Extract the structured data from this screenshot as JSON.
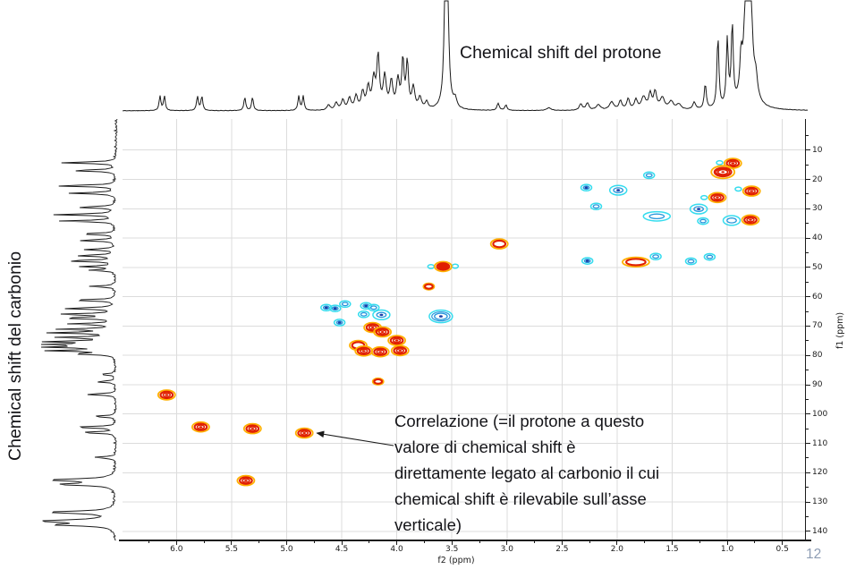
{
  "page": {
    "number": "12"
  },
  "labels": {
    "proton_title": "Chemical shift del protone",
    "carbon_title": "Chemical shift del carbonio",
    "f2_axis": "f2 (ppm)",
    "f1_axis": "f1 (ppm)",
    "annotation_full": "Correlazione (=il protone a questo valore di chemical shift è direttamente legato al carbonio il cui chemical shift è rilevabile sull’asse verticale)",
    "annotation_lines": [
      "Correlazione (=il protone a questo",
      "valore di chemical shift è",
      "direttamente legato al carbonio il cui",
      "chemical shift è rilevabile sull’asse",
      "verticale)"
    ]
  },
  "colors": {
    "trace": "#1a1a1a",
    "grid": "#dcdcdc",
    "pos_outer": "#ffb000",
    "pos_main": "#e01f00",
    "neg_outer": "#35dcee",
    "neg_mid": "#2596dc",
    "neg_center": "#1d3fa8",
    "page_number": "#8E9DB4"
  },
  "chart_data": [
    {
      "name": "hsqc_2d_contour",
      "type": "heatmap",
      "title": "2D H-C correlation contour map (HSQC-style)",
      "x_axis": {
        "label": "f2 (ppm)",
        "range": [
          6.49,
          0.27
        ],
        "tick_labels": [
          "6.0",
          "5.5",
          "5.0",
          "4.5",
          "4.0",
          "3.5",
          "3.0",
          "2.5",
          "2.0",
          "1.5",
          "1.0",
          "0.5"
        ],
        "grid": true
      },
      "y_axis": {
        "label": "f1 (ppm)",
        "range": [
          -0.6,
          143.1
        ],
        "tick_labels": [
          "10",
          "20",
          "30",
          "40",
          "50",
          "60",
          "70",
          "80",
          "90",
          "100",
          "110",
          "120",
          "130",
          "140"
        ],
        "grid": true
      },
      "peaks": [
        [
          0.95,
          14.5,
          "red",
          "med",
          ""
        ],
        [
          1.04,
          17.5,
          "red",
          "large",
          ""
        ],
        [
          0.78,
          24.0,
          "red",
          "med",
          ""
        ],
        [
          1.09,
          26.2,
          "red",
          "med",
          ""
        ],
        [
          0.79,
          33.8,
          "red",
          "med",
          ""
        ],
        [
          3.07,
          42.0,
          "red",
          "med",
          "hollow"
        ],
        [
          1.83,
          48.2,
          "red",
          "wide",
          "hollow"
        ],
        [
          3.58,
          49.7,
          "red",
          "med",
          "filled"
        ],
        [
          3.71,
          56.5,
          "red",
          "small",
          ""
        ],
        [
          4.22,
          70.5,
          "red",
          "med",
          ""
        ],
        [
          4.13,
          72.0,
          "red",
          "med",
          ""
        ],
        [
          4.0,
          74.9,
          "red",
          "med",
          ""
        ],
        [
          4.35,
          76.6,
          "red",
          "med",
          "hollow"
        ],
        [
          4.3,
          78.5,
          "red",
          "med",
          ""
        ],
        [
          4.15,
          78.8,
          "red",
          "med",
          ""
        ],
        [
          3.97,
          78.4,
          "red",
          "med",
          ""
        ],
        [
          4.17,
          88.9,
          "red",
          "small",
          ""
        ],
        [
          6.09,
          93.5,
          "red",
          "med",
          ""
        ],
        [
          5.78,
          104.4,
          "red",
          "med",
          ""
        ],
        [
          5.31,
          105.0,
          "red",
          "med",
          ""
        ],
        [
          4.84,
          106.5,
          "red",
          "med",
          ""
        ],
        [
          5.37,
          122.7,
          "red",
          "med",
          ""
        ],
        [
          1.07,
          14.3,
          "cyan",
          "tiny",
          ""
        ],
        [
          1.71,
          18.6,
          "cyan",
          "small",
          ""
        ],
        [
          2.28,
          22.8,
          "cyan",
          "small",
          "center"
        ],
        [
          1.99,
          23.7,
          "cyan",
          "med",
          "center"
        ],
        [
          0.9,
          23.3,
          "cyan",
          "tiny",
          ""
        ],
        [
          1.21,
          26.2,
          "cyan",
          "tiny",
          ""
        ],
        [
          2.19,
          29.2,
          "cyan",
          "small",
          ""
        ],
        [
          1.26,
          30.1,
          "cyan",
          "med",
          "center"
        ],
        [
          1.64,
          32.6,
          "cyan",
          "wide",
          ""
        ],
        [
          1.22,
          34.2,
          "cyan",
          "small",
          ""
        ],
        [
          0.96,
          34.0,
          "cyan",
          "med",
          ""
        ],
        [
          2.27,
          47.8,
          "cyan",
          "small",
          "center"
        ],
        [
          1.65,
          46.3,
          "cyan",
          "small",
          ""
        ],
        [
          1.33,
          47.9,
          "cyan",
          "small",
          ""
        ],
        [
          1.16,
          46.4,
          "cyan",
          "small",
          ""
        ],
        [
          3.69,
          49.7,
          "cyan",
          "tiny",
          ""
        ],
        [
          3.47,
          49.6,
          "cyan",
          "tiny",
          ""
        ],
        [
          4.64,
          63.7,
          "cyan",
          "small",
          "center"
        ],
        [
          4.56,
          64.0,
          "cyan",
          "small",
          "center"
        ],
        [
          4.47,
          62.5,
          "cyan",
          "small",
          ""
        ],
        [
          4.28,
          63.1,
          "cyan",
          "small",
          "center"
        ],
        [
          4.21,
          63.7,
          "cyan",
          "small",
          ""
        ],
        [
          4.3,
          66.0,
          "cyan",
          "small",
          ""
        ],
        [
          4.14,
          66.2,
          "cyan",
          "med",
          "center"
        ],
        [
          4.52,
          68.8,
          "cyan",
          "small",
          "center"
        ],
        [
          3.6,
          66.7,
          "cyan",
          "large",
          "center"
        ]
      ]
    },
    {
      "name": "proton_1d_trace",
      "type": "line",
      "orientation": "horizontal",
      "peaks_ppm_height_width": [
        [
          6.15,
          16,
          1.2
        ],
        [
          6.11,
          16,
          1.2
        ],
        [
          5.81,
          16,
          1.2
        ],
        [
          5.77,
          16,
          1.2
        ],
        [
          5.38,
          15,
          1.2
        ],
        [
          5.31,
          15,
          1.2
        ],
        [
          4.89,
          16,
          1.2
        ],
        [
          4.85,
          16,
          1.2
        ],
        [
          4.62,
          6,
          2
        ],
        [
          4.55,
          8,
          2
        ],
        [
          4.49,
          11,
          2
        ],
        [
          4.43,
          13,
          2
        ],
        [
          4.37,
          15,
          2
        ],
        [
          4.31,
          19,
          2
        ],
        [
          4.26,
          24,
          2
        ],
        [
          4.21,
          32,
          2
        ],
        [
          4.17,
          58,
          1.8
        ],
        [
          4.11,
          36,
          2
        ],
        [
          4.05,
          30,
          2
        ],
        [
          3.99,
          32,
          2
        ],
        [
          3.945,
          54,
          1.5
        ],
        [
          3.905,
          52,
          1.5
        ],
        [
          3.85,
          24,
          2
        ],
        [
          3.79,
          13,
          2
        ],
        [
          3.73,
          8,
          2
        ],
        [
          3.55,
          420,
          1.4
        ],
        [
          3.47,
          10,
          2
        ],
        [
          3.08,
          8,
          1.5
        ],
        [
          3.01,
          6,
          1.5
        ],
        [
          2.62,
          3,
          3
        ],
        [
          2.33,
          7,
          2
        ],
        [
          2.27,
          8,
          2
        ],
        [
          2.17,
          6,
          3
        ],
        [
          2.05,
          9,
          3
        ],
        [
          1.97,
          10,
          2
        ],
        [
          1.9,
          12,
          2
        ],
        [
          1.83,
          11,
          2
        ],
        [
          1.76,
          14,
          3
        ],
        [
          1.7,
          17,
          2
        ],
        [
          1.655,
          19,
          2
        ],
        [
          1.59,
          13,
          3
        ],
        [
          1.51,
          9,
          3
        ],
        [
          1.44,
          6,
          3
        ],
        [
          1.3,
          8,
          2
        ],
        [
          1.2,
          28,
          1.4
        ],
        [
          1.085,
          80,
          1.3
        ],
        [
          1.0,
          74,
          1.3
        ],
        [
          0.955,
          90,
          1.3
        ],
        [
          0.875,
          40,
          1.5
        ],
        [
          0.81,
          430,
          2.4
        ],
        [
          0.74,
          20,
          2
        ]
      ]
    },
    {
      "name": "carbon_1d_trace",
      "type": "line",
      "orientation": "vertical",
      "peaks_ppm_length_width": [
        [
          14.3,
          62,
          0.9
        ],
        [
          17.0,
          50,
          0.9
        ],
        [
          22.2,
          68,
          0.9
        ],
        [
          24.7,
          52,
          0.9
        ],
        [
          29.5,
          45,
          0.9
        ],
        [
          32.0,
          70,
          0.9
        ],
        [
          34.2,
          62,
          0.9
        ],
        [
          38.6,
          40,
          0.9
        ],
        [
          40.8,
          42,
          0.9
        ],
        [
          43.9,
          36,
          0.9
        ],
        [
          46.0,
          44,
          0.9
        ],
        [
          47.8,
          56,
          0.9
        ],
        [
          49.7,
          38,
          0.9
        ],
        [
          51.0,
          28,
          0.9
        ],
        [
          56.5,
          30,
          0.9
        ],
        [
          61.2,
          50,
          0.9
        ],
        [
          64.0,
          60,
          0.9
        ],
        [
          66.0,
          64,
          0.9
        ],
        [
          67.3,
          60,
          0.9
        ],
        [
          69.3,
          52,
          0.9
        ],
        [
          71.1,
          60,
          0.9
        ],
        [
          72.3,
          70,
          0.9
        ],
        [
          73.9,
          64,
          0.9
        ],
        [
          75.3,
          76,
          0.9
        ],
        [
          76.3,
          78,
          0.9
        ],
        [
          77.2,
          76,
          0.9
        ],
        [
          78.4,
          72,
          0.9
        ],
        [
          79.5,
          45,
          0.9
        ],
        [
          86.5,
          18,
          0.9
        ],
        [
          89.0,
          22,
          0.9
        ],
        [
          93.3,
          34,
          0.9
        ],
        [
          100.8,
          26,
          0.9
        ],
        [
          104.5,
          48,
          0.9
        ],
        [
          106.3,
          40,
          0.9
        ],
        [
          114.8,
          26,
          0.9
        ],
        [
          122.5,
          72,
          1.6
        ],
        [
          124.0,
          60,
          1.4
        ],
        [
          133.5,
          74,
          1.6
        ],
        [
          136.5,
          78,
          1.8
        ],
        [
          137.8,
          60,
          1.4
        ]
      ]
    }
  ]
}
